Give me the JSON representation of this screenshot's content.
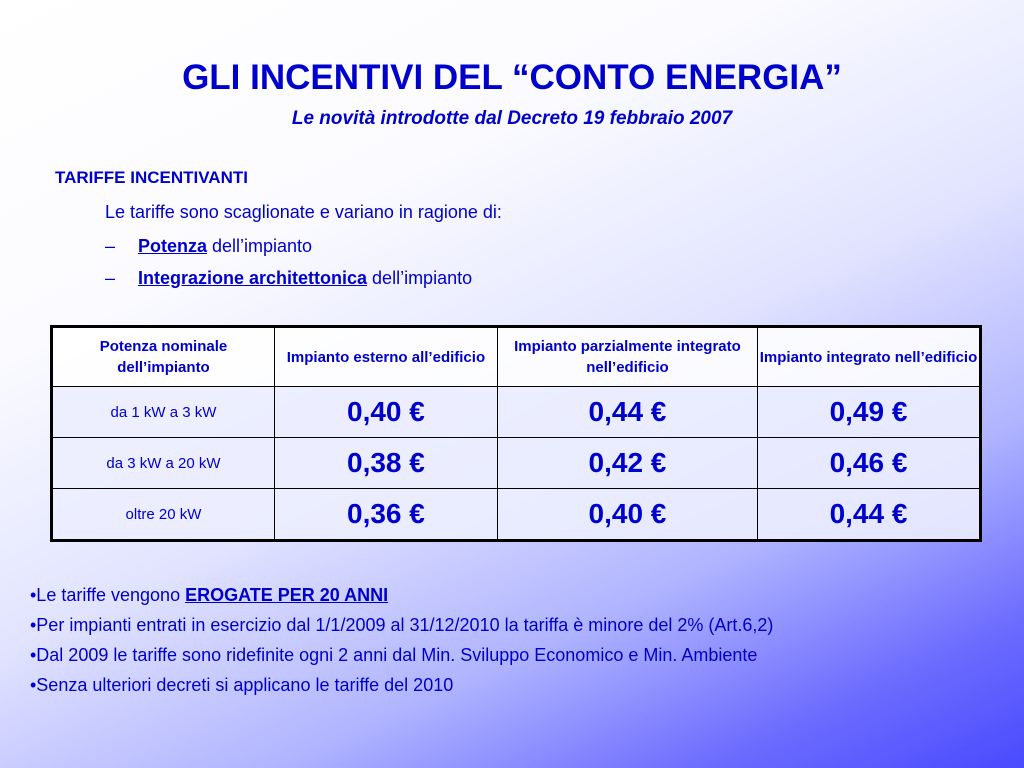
{
  "title": "GLI INCENTIVI DEL “CONTO ENERGIA”",
  "subtitle": "Le novità introdotte dal Decreto 19 febbraio 2007",
  "section": {
    "heading": "TARIFFE INCENTIVANTI",
    "intro": "Le tariffe sono scaglionate e variano in ragione di:",
    "criteria": [
      {
        "bullet": "–",
        "keyword": "Potenza",
        "rest": " dell’impianto"
      },
      {
        "bullet": "–",
        "keyword": "Integrazione architettonica",
        "rest": " dell’impianto"
      }
    ]
  },
  "table": {
    "headers": [
      "Potenza nominale dell’impianto",
      "Impianto esterno all’edificio",
      "Impianto parzialmente integrato nell’edificio",
      "Impianto integrato nell’edificio"
    ],
    "rows": [
      {
        "range": "da 1 kW a 3 kW",
        "values": [
          "0,40 €",
          "0,44 €",
          "0,49 €"
        ]
      },
      {
        "range": "da 3 kW a 20 kW",
        "values": [
          "0,38 €",
          "0,42 €",
          "0,46 €"
        ]
      },
      {
        "range": "oltre 20 kW",
        "values": [
          "0,36 €",
          "0,40 €",
          "0,44 €"
        ]
      }
    ]
  },
  "notes": [
    {
      "prefix": "•Le tariffe vengono ",
      "emph": "EROGATE PER 20 ANNI",
      "suffix": ""
    },
    {
      "prefix": "•Per impianti entrati in esercizio dal 1/1/2009 al 31/12/2010 la tariffa è minore del 2% (Art.6,2)",
      "emph": "",
      "suffix": ""
    },
    {
      "prefix": "•Dal 2009 le tariffe sono ridefinite ogni 2 anni dal Min. Sviluppo Economico e Min. Ambiente",
      "emph": "",
      "suffix": ""
    },
    {
      "prefix": "•Senza ulteriori decreti si applicano le tariffe del 2010",
      "emph": "",
      "suffix": ""
    }
  ],
  "colors": {
    "text": "#0000cc",
    "background_light": "#ffffff",
    "background_dark": "#4a4aff"
  }
}
